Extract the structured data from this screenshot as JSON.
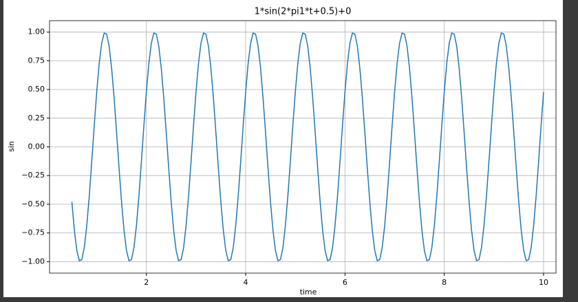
{
  "chart_data": {
    "type": "line",
    "title": "1*sin(2*pi1*t+0.5)+0",
    "xlabel": "time",
    "ylabel": "sin",
    "color": "#1f77b4",
    "grid": true,
    "xlim": [
      0.05,
      10.25
    ],
    "ylim": [
      -1.1,
      1.1
    ],
    "xticks": [
      2,
      4,
      6,
      8,
      10
    ],
    "yticks": [
      {
        "value": -1,
        "label": "−1.00"
      },
      {
        "value": -0.75,
        "label": "−0.75"
      },
      {
        "value": -0.5,
        "label": "−0.50"
      },
      {
        "value": -0.25,
        "label": "−0.25"
      },
      {
        "value": 0,
        "label": "0.00"
      },
      {
        "value": 0.25,
        "label": "0.25"
      },
      {
        "value": 0.5,
        "label": "0.50"
      },
      {
        "value": 0.75,
        "label": "0.75"
      },
      {
        "value": 1,
        "label": "1.00"
      }
    ],
    "x": [
      0.5,
      0.55,
      0.6,
      0.65,
      0.7,
      0.75,
      0.8,
      0.85,
      0.9,
      0.95,
      1.0,
      1.05,
      1.1,
      1.15,
      1.2,
      1.25,
      1.3,
      1.35,
      1.4,
      1.45,
      1.5,
      1.55,
      1.6,
      1.65,
      1.7,
      1.75,
      1.8,
      1.85,
      1.9,
      1.95,
      2.0,
      2.05,
      2.1,
      2.15,
      2.2,
      2.25,
      2.3,
      2.35,
      2.4,
      2.45,
      2.5,
      2.55,
      2.6,
      2.65,
      2.7,
      2.75,
      2.8,
      2.85,
      2.9,
      2.95,
      3.0,
      3.05,
      3.1,
      3.15,
      3.2,
      3.25,
      3.3,
      3.35,
      3.4,
      3.45,
      3.5,
      3.55,
      3.6,
      3.65,
      3.7,
      3.75,
      3.8,
      3.85,
      3.9,
      3.95,
      4.0,
      4.05,
      4.1,
      4.15,
      4.2,
      4.25,
      4.3,
      4.35,
      4.4,
      4.45,
      4.5,
      4.55,
      4.6,
      4.65,
      4.7,
      4.75,
      4.8,
      4.85,
      4.9,
      4.95,
      5.0,
      5.05,
      5.1,
      5.15,
      5.2,
      5.25,
      5.3,
      5.35,
      5.4,
      5.45,
      5.5,
      5.55,
      5.6,
      5.65,
      5.7,
      5.75,
      5.8,
      5.85,
      5.9,
      5.95,
      6.0,
      6.05,
      6.1,
      6.15,
      6.2,
      6.25,
      6.3,
      6.35,
      6.4,
      6.45,
      6.5,
      6.55,
      6.6,
      6.65,
      6.7,
      6.75,
      6.8,
      6.85,
      6.9,
      6.95,
      7.0,
      7.05,
      7.1,
      7.15,
      7.2,
      7.25,
      7.3,
      7.35,
      7.4,
      7.45,
      7.5,
      7.55,
      7.6,
      7.65,
      7.7,
      7.75,
      7.8,
      7.85,
      7.9,
      7.95,
      8.0,
      8.05,
      8.1,
      8.15,
      8.2,
      8.25,
      8.3,
      8.35,
      8.4,
      8.45,
      8.5,
      8.55,
      8.6,
      8.65,
      8.7,
      8.75,
      8.8,
      8.85,
      8.9,
      8.95,
      9.0,
      9.05,
      9.1,
      9.15,
      9.2,
      9.25,
      9.3,
      9.35,
      9.4,
      9.45,
      9.5,
      9.55,
      9.6,
      9.65,
      9.7,
      9.75,
      9.8,
      9.85,
      9.9,
      9.95,
      10.0
    ],
    "values": [
      -0.479,
      -0.727,
      -0.904,
      -0.992,
      -0.983,
      -0.878,
      -0.686,
      -0.428,
      -0.128,
      0.185,
      0.479,
      0.727,
      0.904,
      0.992,
      0.983,
      0.878,
      0.686,
      0.428,
      0.128,
      -0.185,
      -0.479,
      -0.727,
      -0.904,
      -0.992,
      -0.983,
      -0.878,
      -0.686,
      -0.428,
      -0.128,
      0.185,
      0.479,
      0.727,
      0.904,
      0.992,
      0.983,
      0.878,
      0.686,
      0.428,
      0.128,
      -0.185,
      -0.479,
      -0.727,
      -0.904,
      -0.992,
      -0.983,
      -0.878,
      -0.686,
      -0.428,
      -0.128,
      0.185,
      0.479,
      0.727,
      0.904,
      0.992,
      0.983,
      0.878,
      0.686,
      0.428,
      0.128,
      -0.185,
      -0.479,
      -0.727,
      -0.904,
      -0.992,
      -0.983,
      -0.878,
      -0.686,
      -0.428,
      -0.128,
      0.185,
      0.479,
      0.727,
      0.904,
      0.992,
      0.983,
      0.878,
      0.686,
      0.428,
      0.128,
      -0.185,
      -0.479,
      -0.727,
      -0.904,
      -0.992,
      -0.983,
      -0.878,
      -0.686,
      -0.428,
      -0.128,
      0.185,
      0.479,
      0.727,
      0.904,
      0.992,
      0.983,
      0.878,
      0.686,
      0.428,
      0.128,
      -0.185,
      -0.479,
      -0.727,
      -0.904,
      -0.992,
      -0.983,
      -0.878,
      -0.686,
      -0.428,
      -0.128,
      0.185,
      0.479,
      0.727,
      0.904,
      0.992,
      0.983,
      0.878,
      0.686,
      0.428,
      0.128,
      -0.185,
      -0.479,
      -0.727,
      -0.904,
      -0.992,
      -0.983,
      -0.878,
      -0.686,
      -0.428,
      -0.128,
      0.185,
      0.479,
      0.727,
      0.904,
      0.992,
      0.983,
      0.878,
      0.686,
      0.428,
      0.128,
      -0.185,
      -0.479,
      -0.727,
      -0.904,
      -0.992,
      -0.983,
      -0.878,
      -0.686,
      -0.428,
      -0.128,
      0.185,
      0.479,
      0.727,
      0.904,
      0.992,
      0.983,
      0.878,
      0.686,
      0.428,
      0.128,
      -0.185,
      -0.479,
      -0.727,
      -0.904,
      -0.992,
      -0.983,
      -0.878,
      -0.686,
      -0.428,
      -0.128,
      0.185,
      0.479,
      0.727,
      0.904,
      0.992,
      0.983,
      0.878,
      0.686,
      0.428,
      0.128,
      -0.185,
      -0.479,
      -0.727,
      -0.904,
      -0.992,
      -0.983,
      -0.878,
      -0.686,
      -0.428,
      -0.128,
      0.185,
      0.479
    ]
  }
}
